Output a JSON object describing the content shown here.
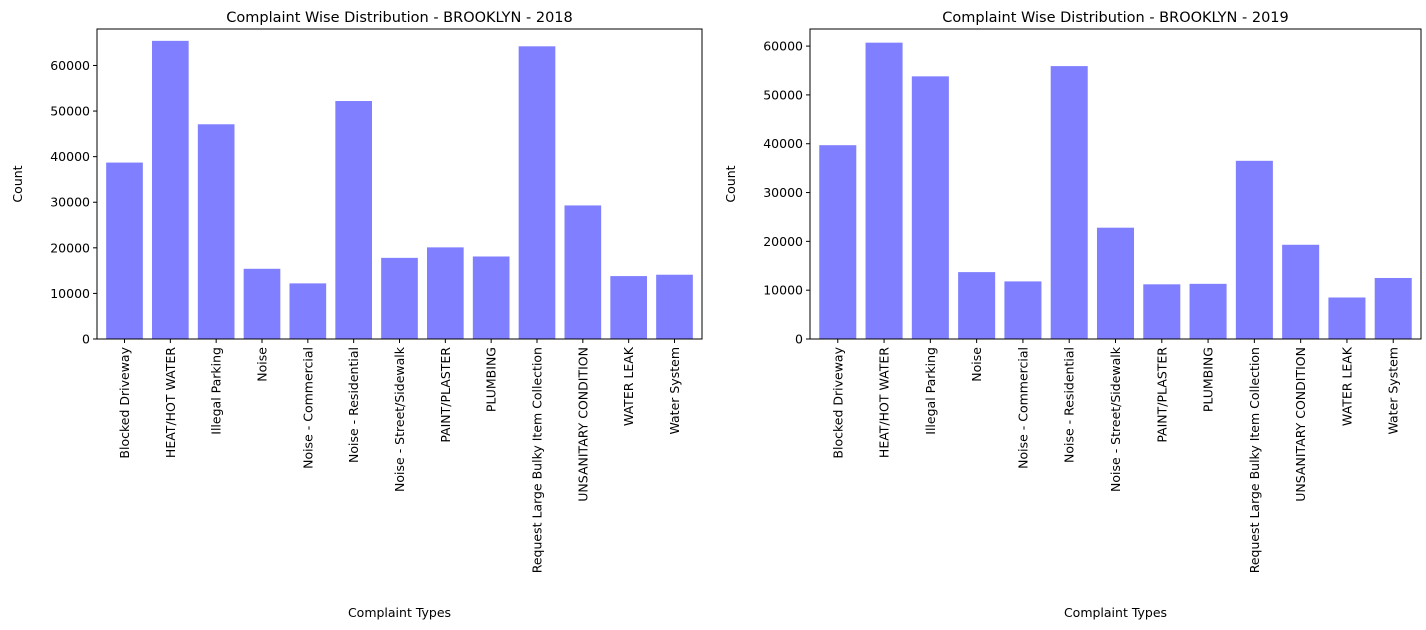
{
  "chart_data": [
    {
      "type": "bar",
      "title": "Complaint Wise Distribution - BROOKLYN - 2018",
      "xlabel": "Complaint Types",
      "ylabel": "Count",
      "ylim": [
        0,
        68000
      ],
      "yticks": [
        0,
        10000,
        20000,
        30000,
        40000,
        50000,
        60000
      ],
      "grid": false,
      "bar_color": "#7f7fff",
      "categories": [
        "Blocked Driveway",
        "HEAT/HOT WATER",
        "Illegal Parking",
        "Noise",
        "Noise - Commercial",
        "Noise - Residential",
        "Noise - Street/Sidewalk",
        "PAINT/PLASTER",
        "PLUMBING",
        "Request Large Bulky Item Collection",
        "UNSANITARY CONDITION",
        "WATER LEAK",
        "Water System"
      ],
      "values": [
        38700,
        65400,
        47100,
        15400,
        12200,
        52200,
        17800,
        20100,
        18100,
        64200,
        29300,
        13800,
        14100
      ]
    },
    {
      "type": "bar",
      "title": "Complaint Wise Distribution - BROOKLYN - 2019",
      "xlabel": "Complaint Types",
      "ylabel": "Count",
      "ylim": [
        0,
        63500
      ],
      "yticks": [
        0,
        10000,
        20000,
        30000,
        40000,
        50000,
        60000
      ],
      "grid": false,
      "bar_color": "#7f7fff",
      "categories": [
        "Blocked Driveway",
        "HEAT/HOT WATER",
        "Illegal Parking",
        "Noise",
        "Noise - Commercial",
        "Noise - Residential",
        "Noise - Street/Sidewalk",
        "PAINT/PLASTER",
        "PLUMBING",
        "Request Large Bulky Item Collection",
        "UNSANITARY CONDITION",
        "WATER LEAK",
        "Water System"
      ],
      "values": [
        39700,
        60700,
        53800,
        13700,
        11800,
        55900,
        22800,
        11200,
        11300,
        36500,
        19300,
        8500,
        12500
      ]
    }
  ]
}
